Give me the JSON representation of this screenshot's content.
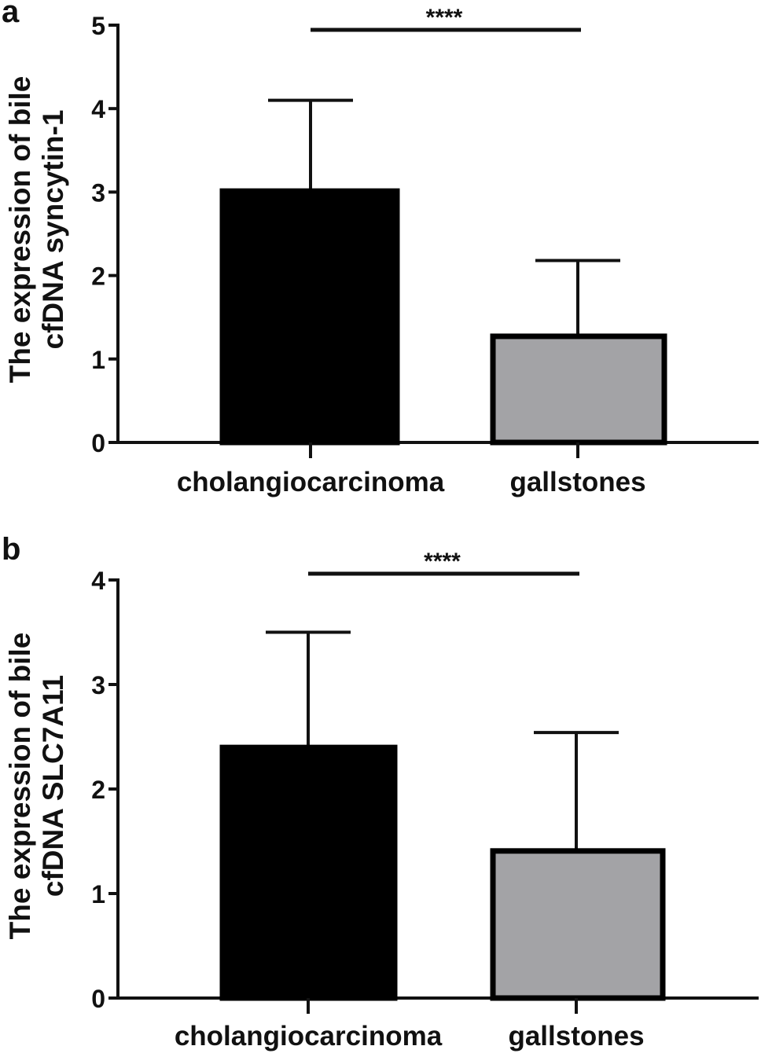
{
  "chart_data": [
    {
      "type": "bar",
      "panel_label": "a",
      "title": "",
      "xlabel": "",
      "ylabel": [
        "The expression of bile",
        "cfDNA syncytin-1"
      ],
      "categories": [
        "cholangiocarcinoma",
        "gallstones"
      ],
      "values": [
        3.04,
        1.3
      ],
      "error_upper": [
        4.1,
        2.18
      ],
      "ylim": [
        0,
        5
      ],
      "yticks": [
        "0",
        "1",
        "2",
        "3",
        "4",
        "5"
      ],
      "significance": "****",
      "colors": [
        "#000000",
        "#a3a3a6"
      ],
      "grid": false
    },
    {
      "type": "bar",
      "panel_label": "b",
      "title": "",
      "xlabel": "",
      "ylabel": [
        "The expression of bile",
        "cfDNA SLC7A11"
      ],
      "categories": [
        "cholangiocarcinoma",
        "gallstones"
      ],
      "values": [
        2.42,
        1.43
      ],
      "error_upper": [
        3.5,
        2.54
      ],
      "ylim": [
        0,
        4
      ],
      "yticks": [
        "0",
        "1",
        "2",
        "3",
        "4"
      ],
      "significance": "****",
      "colors": [
        "#000000",
        "#a3a3a6"
      ],
      "grid": false
    }
  ]
}
